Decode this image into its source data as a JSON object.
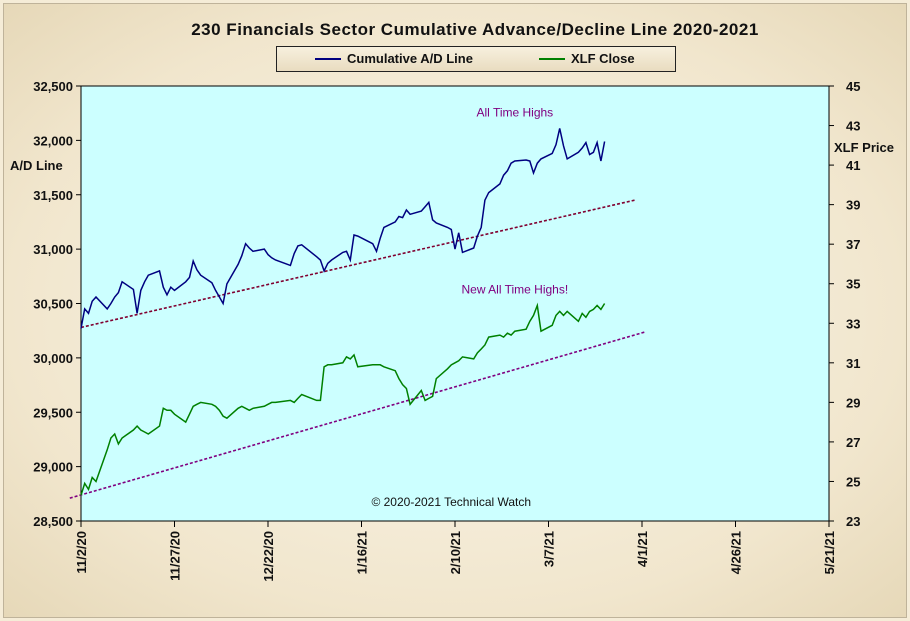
{
  "chart_data": {
    "type": "line",
    "title": "230 Financials  Sector Cumulative  Advance/Decline  Line  2020-2021",
    "ylabel_left": "A/D Line",
    "ylabel_right": "XLF Price",
    "x_ticks": [
      "11/2/20",
      "11/27/20",
      "12/22/20",
      "1/16/21",
      "2/10/21",
      "3/7/21",
      "4/1/21",
      "4/26/21",
      "5/21/21"
    ],
    "xlim": [
      "2020-11-02",
      "2021-05-21"
    ],
    "y_left": {
      "ylim": [
        28500,
        32500
      ],
      "ticks": [
        "28,500",
        "29,000",
        "29,500",
        "30,000",
        "30,500",
        "31,000",
        "31,500",
        "32,000",
        "32,500"
      ]
    },
    "y_right": {
      "ylim": [
        23,
        45
      ],
      "ticks": [
        "23",
        "25",
        "27",
        "29",
        "31",
        "33",
        "35",
        "37",
        "39",
        "41",
        "43",
        "45"
      ]
    },
    "series": [
      {
        "name": "Cumulative A/D Line",
        "axis": "left",
        "color": "#000080",
        "points": [
          [
            "2020-11-02",
            30270
          ],
          [
            "2020-11-03",
            30450
          ],
          [
            "2020-11-04",
            30410
          ],
          [
            "2020-11-05",
            30520
          ],
          [
            "2020-11-06",
            30560
          ],
          [
            "2020-11-09",
            30450
          ],
          [
            "2020-11-10",
            30500
          ],
          [
            "2020-11-11",
            30560
          ],
          [
            "2020-11-12",
            30600
          ],
          [
            "2020-11-13",
            30700
          ],
          [
            "2020-11-16",
            30630
          ],
          [
            "2020-11-17",
            30410
          ],
          [
            "2020-11-18",
            30620
          ],
          [
            "2020-11-19",
            30700
          ],
          [
            "2020-11-20",
            30760
          ],
          [
            "2020-11-23",
            30800
          ],
          [
            "2020-11-24",
            30650
          ],
          [
            "2020-11-25",
            30580
          ],
          [
            "2020-11-26",
            30650
          ],
          [
            "2020-11-27",
            30620
          ],
          [
            "2020-11-30",
            30700
          ],
          [
            "2020-12-01",
            30740
          ],
          [
            "2020-12-02",
            30890
          ],
          [
            "2020-12-03",
            30810
          ],
          [
            "2020-12-04",
            30760
          ],
          [
            "2020-12-07",
            30690
          ],
          [
            "2020-12-08",
            30620
          ],
          [
            "2020-12-09",
            30560
          ],
          [
            "2020-12-10",
            30500
          ],
          [
            "2020-12-11",
            30680
          ],
          [
            "2020-12-14",
            30860
          ],
          [
            "2020-12-15",
            30940
          ],
          [
            "2020-12-16",
            31050
          ],
          [
            "2020-12-17",
            31010
          ],
          [
            "2020-12-18",
            30980
          ],
          [
            "2020-12-21",
            31000
          ],
          [
            "2020-12-22",
            30950
          ],
          [
            "2020-12-23",
            30920
          ],
          [
            "2020-12-24",
            30900
          ],
          [
            "2020-12-28",
            30850
          ],
          [
            "2020-12-29",
            30960
          ],
          [
            "2020-12-30",
            31030
          ],
          [
            "2020-12-31",
            31040
          ],
          [
            "2021-01-04",
            30930
          ],
          [
            "2021-01-05",
            30900
          ],
          [
            "2021-01-06",
            30800
          ],
          [
            "2021-01-07",
            30870
          ],
          [
            "2021-01-08",
            30900
          ],
          [
            "2021-01-11",
            30970
          ],
          [
            "2021-01-12",
            30980
          ],
          [
            "2021-01-13",
            30900
          ],
          [
            "2021-01-14",
            31130
          ],
          [
            "2021-01-15",
            31120
          ],
          [
            "2021-01-19",
            31050
          ],
          [
            "2021-01-20",
            30980
          ],
          [
            "2021-01-21",
            31100
          ],
          [
            "2021-01-22",
            31200
          ],
          [
            "2021-01-25",
            31250
          ],
          [
            "2021-01-26",
            31300
          ],
          [
            "2021-01-27",
            31290
          ],
          [
            "2021-01-28",
            31360
          ],
          [
            "2021-01-29",
            31320
          ],
          [
            "2021-02-01",
            31350
          ],
          [
            "2021-02-02",
            31390
          ],
          [
            "2021-02-03",
            31430
          ],
          [
            "2021-02-04",
            31270
          ],
          [
            "2021-02-05",
            31240
          ],
          [
            "2021-02-08",
            31200
          ],
          [
            "2021-02-09",
            31180
          ],
          [
            "2021-02-10",
            31000
          ],
          [
            "2021-02-11",
            31150
          ],
          [
            "2021-02-12",
            30970
          ],
          [
            "2021-02-15",
            31010
          ],
          [
            "2021-02-16",
            31120
          ],
          [
            "2021-02-17",
            31200
          ],
          [
            "2021-02-18",
            31450
          ],
          [
            "2021-02-19",
            31520
          ],
          [
            "2021-02-22",
            31600
          ],
          [
            "2021-02-23",
            31680
          ],
          [
            "2021-02-24",
            31720
          ],
          [
            "2021-02-25",
            31790
          ],
          [
            "2021-02-26",
            31810
          ],
          [
            "2021-03-01",
            31820
          ],
          [
            "2021-03-02",
            31810
          ],
          [
            "2021-03-03",
            31700
          ],
          [
            "2021-03-04",
            31790
          ],
          [
            "2021-03-05",
            31830
          ],
          [
            "2021-03-08",
            31880
          ],
          [
            "2021-03-09",
            31960
          ],
          [
            "2021-03-10",
            32110
          ],
          [
            "2021-03-11",
            31950
          ],
          [
            "2021-03-12",
            31830
          ],
          [
            "2021-03-15",
            31890
          ],
          [
            "2021-03-16",
            31930
          ],
          [
            "2021-03-17",
            31980
          ],
          [
            "2021-03-18",
            31870
          ],
          [
            "2021-03-19",
            31890
          ],
          [
            "2021-03-20",
            31980
          ],
          [
            "2021-03-21",
            31810
          ],
          [
            "2021-03-22",
            31990
          ]
        ]
      },
      {
        "name": "XLF Close",
        "axis": "right",
        "color": "#008000",
        "points": [
          [
            "2020-11-02",
            24.3
          ],
          [
            "2020-11-03",
            24.9
          ],
          [
            "2020-11-04",
            24.6
          ],
          [
            "2020-11-05",
            25.2
          ],
          [
            "2020-11-06",
            25.0
          ],
          [
            "2020-11-09",
            26.6
          ],
          [
            "2020-11-10",
            27.2
          ],
          [
            "2020-11-11",
            27.4
          ],
          [
            "2020-11-12",
            26.9
          ],
          [
            "2020-11-13",
            27.2
          ],
          [
            "2020-11-16",
            27.6
          ],
          [
            "2020-11-17",
            27.8
          ],
          [
            "2020-11-18",
            27.6
          ],
          [
            "2020-11-19",
            27.5
          ],
          [
            "2020-11-20",
            27.4
          ],
          [
            "2020-11-23",
            27.8
          ],
          [
            "2020-11-24",
            28.7
          ],
          [
            "2020-11-25",
            28.6
          ],
          [
            "2020-11-26",
            28.6
          ],
          [
            "2020-11-27",
            28.4
          ],
          [
            "2020-11-30",
            28.0
          ],
          [
            "2020-12-01",
            28.4
          ],
          [
            "2020-12-02",
            28.8
          ],
          [
            "2020-12-03",
            28.9
          ],
          [
            "2020-12-04",
            29.0
          ],
          [
            "2020-12-07",
            28.9
          ],
          [
            "2020-12-08",
            28.8
          ],
          [
            "2020-12-09",
            28.6
          ],
          [
            "2020-12-10",
            28.3
          ],
          [
            "2020-12-11",
            28.2
          ],
          [
            "2020-12-14",
            28.7
          ],
          [
            "2020-12-15",
            28.8
          ],
          [
            "2020-12-16",
            28.7
          ],
          [
            "2020-12-17",
            28.6
          ],
          [
            "2020-12-18",
            28.7
          ],
          [
            "2020-12-21",
            28.8
          ],
          [
            "2020-12-22",
            28.9
          ],
          [
            "2020-12-23",
            29.0
          ],
          [
            "2020-12-24",
            29.0
          ],
          [
            "2020-12-28",
            29.1
          ],
          [
            "2020-12-29",
            29.0
          ],
          [
            "2020-12-30",
            29.2
          ],
          [
            "2020-12-31",
            29.4
          ],
          [
            "2021-01-04",
            29.1
          ],
          [
            "2021-01-05",
            29.1
          ],
          [
            "2021-01-06",
            30.8
          ],
          [
            "2021-01-07",
            30.9
          ],
          [
            "2021-01-08",
            30.9
          ],
          [
            "2021-01-11",
            31.0
          ],
          [
            "2021-01-12",
            31.3
          ],
          [
            "2021-01-13",
            31.2
          ],
          [
            "2021-01-14",
            31.4
          ],
          [
            "2021-01-15",
            30.8
          ],
          [
            "2021-01-19",
            30.9
          ],
          [
            "2021-01-20",
            30.9
          ],
          [
            "2021-01-21",
            30.9
          ],
          [
            "2021-01-22",
            30.8
          ],
          [
            "2021-01-25",
            30.6
          ],
          [
            "2021-01-26",
            30.2
          ],
          [
            "2021-01-27",
            29.9
          ],
          [
            "2021-01-28",
            29.7
          ],
          [
            "2021-01-29",
            28.9
          ],
          [
            "2021-02-01",
            29.6
          ],
          [
            "2021-02-02",
            29.1
          ],
          [
            "2021-02-03",
            29.2
          ],
          [
            "2021-02-04",
            29.3
          ],
          [
            "2021-02-05",
            30.2
          ],
          [
            "2021-02-08",
            30.7
          ],
          [
            "2021-02-09",
            30.9
          ],
          [
            "2021-02-10",
            31.0
          ],
          [
            "2021-02-11",
            31.1
          ],
          [
            "2021-02-12",
            31.3
          ],
          [
            "2021-02-15",
            31.2
          ],
          [
            "2021-02-16",
            31.5
          ],
          [
            "2021-02-17",
            31.7
          ],
          [
            "2021-02-18",
            31.9
          ],
          [
            "2021-02-19",
            32.3
          ],
          [
            "2021-02-22",
            32.4
          ],
          [
            "2021-02-23",
            32.3
          ],
          [
            "2021-02-24",
            32.5
          ],
          [
            "2021-02-25",
            32.4
          ],
          [
            "2021-02-26",
            32.6
          ],
          [
            "2021-03-01",
            32.7
          ],
          [
            "2021-03-02",
            33.1
          ],
          [
            "2021-03-03",
            33.4
          ],
          [
            "2021-03-04",
            33.9
          ],
          [
            "2021-03-05",
            32.6
          ],
          [
            "2021-03-08",
            32.9
          ],
          [
            "2021-03-09",
            33.4
          ],
          [
            "2021-03-10",
            33.6
          ],
          [
            "2021-03-11",
            33.4
          ],
          [
            "2021-03-12",
            33.6
          ],
          [
            "2021-03-15",
            33.1
          ],
          [
            "2021-03-16",
            33.5
          ],
          [
            "2021-03-17",
            33.3
          ],
          [
            "2021-03-18",
            33.6
          ],
          [
            "2021-03-19",
            33.7
          ],
          [
            "2021-03-20",
            33.9
          ],
          [
            "2021-03-21",
            33.7
          ],
          [
            "2021-03-22",
            34.0
          ]
        ]
      }
    ],
    "trendlines": [
      {
        "axis": "left",
        "color": "#800030",
        "from": [
          "2020-11-02",
          30280
        ],
        "to": [
          "2021-03-30",
          31450
        ]
      },
      {
        "axis": "left",
        "color": "#800080",
        "from": [
          "2020-10-30",
          28710
        ],
        "to": [
          "2021-04-02",
          30240
        ]
      }
    ],
    "annotations": [
      {
        "text": "All Time Highs",
        "x": "2021-02-26",
        "y": 32110,
        "axis": "left",
        "color": "#800080"
      },
      {
        "text": "New All Time Highs!",
        "x": "2021-02-26",
        "y": 33.9,
        "axis": "right",
        "color": "#800080"
      },
      {
        "text": "© 2020-2021  Technical Watch",
        "x": "2021-02-09",
        "y": 28640,
        "axis": "left",
        "color": "#111111"
      }
    ],
    "grid": false,
    "legend_position": "top-center",
    "colors": {
      "plot_background": "#ccffff",
      "page_background": "#f5ecd7"
    }
  }
}
